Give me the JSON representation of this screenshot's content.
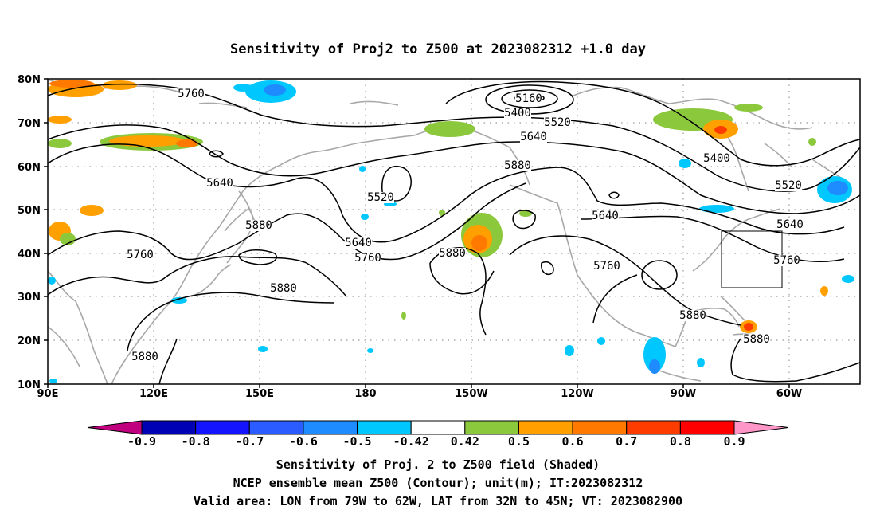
{
  "title": "Sensitivity of Proj2 to Z500 at 2023082312 +1.0 day",
  "lat_ticks": [
    "80N",
    "70N",
    "60N",
    "50N",
    "40N",
    "30N",
    "20N",
    "10N"
  ],
  "lon_ticks": [
    "90E",
    "120E",
    "150E",
    "180",
    "150W",
    "120W",
    "90W",
    "60W"
  ],
  "contour_labels": [
    "5160",
    "5400",
    "5520",
    "5640",
    "5760",
    "5520",
    "5640",
    "5520",
    "5640",
    "5760",
    "5880",
    "5760",
    "5640",
    "5760",
    "5880",
    "5880",
    "5880",
    "5400",
    "5520",
    "5640",
    "5760",
    "5880",
    "5880",
    "5880",
    "5880",
    "5760"
  ],
  "colorbar": {
    "ticks": [
      "-0.9",
      "-0.8",
      "-0.7",
      "-0.6",
      "-0.5",
      "-0.42",
      "0.42",
      "0.5",
      "0.6",
      "0.7",
      "0.8",
      "0.9"
    ],
    "colors": [
      "#c0007f",
      "#0000b4",
      "#1414ff",
      "#2a5cff",
      "#1e8cff",
      "#00c8ff",
      "#ffffff",
      "#8cc83c",
      "#ffa000",
      "#ff7800",
      "#ff3c00",
      "#ff0000",
      "#ff96c8"
    ]
  },
  "captions": [
    "Sensitivity of Proj. 2 to Z500 field (Shaded)",
    "NCEP ensemble mean Z500 (Contour); unit(m); IT:2023082312",
    "Valid area: LON from 79W to 62W, LAT from 32N to 45N; VT: 2023082900"
  ],
  "valid_area": {
    "lon_min_deg": -79,
    "lon_max_deg": -62,
    "lat_min_deg": 32,
    "lat_max_deg": 45
  },
  "map_extent": {
    "lon_west_deg": 90,
    "lon_east_deg": 320,
    "lat_south_deg": 10,
    "lat_north_deg": 80
  }
}
